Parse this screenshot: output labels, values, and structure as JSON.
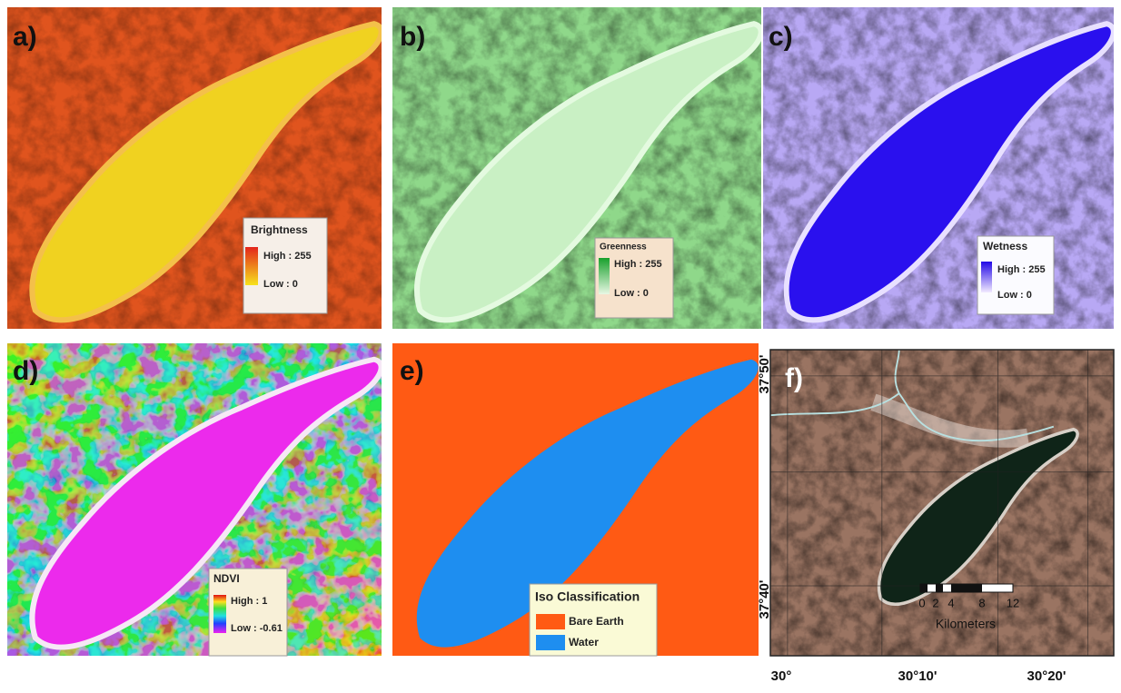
{
  "panels": [
    {
      "label": "a)",
      "legend": {
        "title": "Brightness",
        "high": "High : 255",
        "low": "Low : 0"
      }
    },
    {
      "label": "b)",
      "legend": {
        "title": "Greenness",
        "high": "High : 255",
        "low": "Low : 0"
      }
    },
    {
      "label": "c)",
      "legend": {
        "title": "Wetness",
        "high": "High : 255",
        "low": "Low : 0"
      }
    },
    {
      "label": "d)",
      "legend": {
        "title": "NDVI",
        "high": "High : 1",
        "low": "Low : -0.61"
      }
    },
    {
      "label": "e)",
      "legend": {
        "title": "Iso Classification",
        "items": [
          "Bare Earth",
          "Water"
        ]
      }
    },
    {
      "label": "f)",
      "lat_labels": [
        "37°50'",
        "37°40'"
      ],
      "lon_labels": [
        "30°",
        "30°10'",
        "30°20'"
      ],
      "scale": {
        "ticks": [
          "0",
          "2",
          "4",
          "8",
          "12"
        ],
        "unit": "Kilometers"
      }
    }
  ]
}
